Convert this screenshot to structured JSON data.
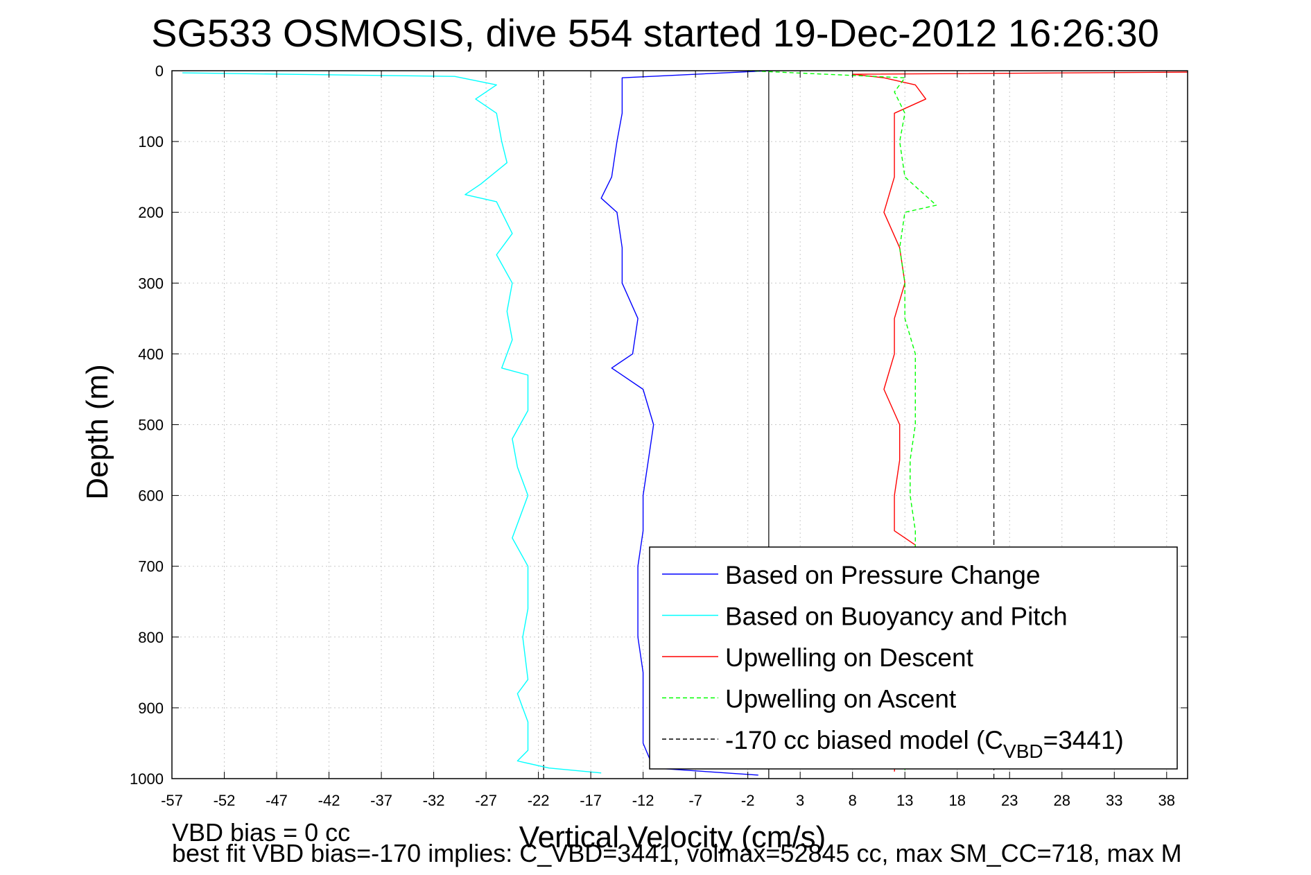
{
  "chart_data": {
    "type": "line",
    "title": "SG533 OSMOSIS, dive 554 started 19-Dec-2012 16:26:30",
    "xlabel": "Vertical Velocity (cm/s)",
    "ylabel": "Depth (m)",
    "xlim": [
      -57,
      40
    ],
    "ylim": [
      0,
      1000
    ],
    "y_reversed": true,
    "grid": true,
    "xticks": [
      -57,
      -52,
      -47,
      -42,
      -37,
      -32,
      -27,
      -22,
      -17,
      -12,
      -7,
      -2,
      3,
      8,
      13,
      18,
      23,
      28,
      33,
      38
    ],
    "yticks": [
      0,
      100,
      200,
      300,
      400,
      500,
      600,
      700,
      800,
      900,
      1000
    ],
    "legend_position": "bottom-right",
    "reference_lines": [
      {
        "x": 0,
        "style": "solid",
        "color": "#000000"
      },
      {
        "x": -21.5,
        "style": "dashed",
        "color": "#000000"
      },
      {
        "x": 21.5,
        "style": "dashed",
        "color": "#000000"
      }
    ],
    "legend": [
      {
        "label": "Based on Pressure Change",
        "color": "#0000ff",
        "style": "solid"
      },
      {
        "label": "Based on Buoyancy and Pitch",
        "color": "#00ffff",
        "style": "solid"
      },
      {
        "label": "Upwelling on Descent",
        "color": "#ff0000",
        "style": "solid"
      },
      {
        "label": "Upwelling on Ascent",
        "color": "#00ff00",
        "style": "dashed"
      },
      {
        "label": "-170 cc biased model (C",
        "sub": "VBD",
        "suffix": "=3441)",
        "color": "#000000",
        "style": "dashed"
      }
    ],
    "series": [
      {
        "name": "Based on Pressure Change",
        "color": "#0000ff",
        "style": "solid",
        "depth": [
          0,
          10,
          30,
          60,
          100,
          150,
          180,
          200,
          250,
          300,
          350,
          400,
          420,
          450,
          500,
          550,
          600,
          650,
          700,
          750,
          800,
          850,
          900,
          950,
          985,
          995
        ],
        "velocity": [
          0,
          -14,
          -14,
          -14,
          -14.5,
          -15,
          -16,
          -14.5,
          -14,
          -14,
          -12.5,
          -13,
          -15,
          -12,
          -11,
          -11.5,
          -12,
          -12,
          -12.5,
          -12.5,
          -12.5,
          -12,
          -12,
          -12,
          -11,
          -1
        ]
      },
      {
        "name": "Based on Buoyancy and Pitch",
        "color": "#00ffff",
        "style": "solid",
        "depth": [
          3,
          8,
          20,
          40,
          60,
          100,
          130,
          160,
          175,
          185,
          200,
          230,
          260,
          300,
          340,
          380,
          420,
          430,
          480,
          520,
          560,
          600,
          660,
          700,
          760,
          800,
          860,
          880,
          920,
          960,
          975,
          985,
          992
        ],
        "velocity": [
          -56,
          -30,
          -26,
          -28,
          -26,
          -25.5,
          -25,
          -27.5,
          -29,
          -26,
          -25.5,
          -24.5,
          -26,
          -24.5,
          -25,
          -24.5,
          -25.5,
          -23,
          -23,
          -24.5,
          -24,
          -23,
          -24.5,
          -23,
          -23,
          -23.5,
          -23,
          -24,
          -23,
          -23,
          -24,
          -21,
          -16
        ]
      },
      {
        "name": "Upwelling on Descent",
        "color": "#ff0000",
        "style": "solid",
        "depth": [
          2,
          5,
          10,
          20,
          40,
          60,
          100,
          150,
          200,
          250,
          300,
          350,
          400,
          450,
          500,
          550,
          600,
          650,
          670,
          990
        ],
        "velocity": [
          40,
          8,
          11,
          14,
          15,
          12,
          12,
          12,
          11,
          12.5,
          13,
          12,
          12,
          11,
          12.5,
          12.5,
          12,
          12,
          14,
          12
        ]
      },
      {
        "name": "Upwelling on Ascent",
        "color": "#00ff00",
        "style": "dashed",
        "depth": [
          0,
          10,
          30,
          60,
          100,
          150,
          190,
          200,
          250,
          300,
          350,
          400,
          450,
          500,
          550,
          600,
          650,
          680,
          990
        ],
        "velocity": [
          -2,
          13,
          12,
          13,
          12.5,
          13,
          16,
          13,
          12.5,
          13,
          13,
          14,
          14,
          14,
          13.5,
          13.5,
          14,
          14,
          13
        ]
      }
    ]
  },
  "footer": {
    "line1": "VBD bias = 0 cc",
    "line2": "best fit VBD bias=-170 implies: C_VBD=3441, volmax=52845 cc, max SM_CC=718, max M"
  }
}
